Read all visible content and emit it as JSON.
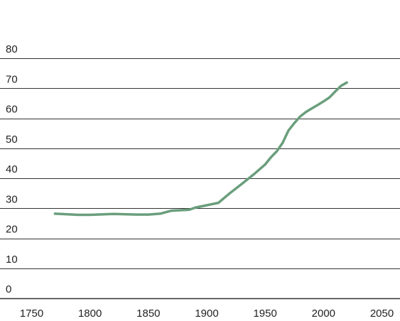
{
  "chart_data": {
    "type": "line",
    "title": "",
    "xlabel": "",
    "ylabel": "",
    "xlim": [
      1745,
      2055
    ],
    "ylim": [
      0,
      80
    ],
    "x_ticks": [
      1750,
      1800,
      1850,
      1900,
      1950,
      2000,
      2050
    ],
    "x_tick_labels": [
      "1750",
      "1800",
      "1850",
      "1900",
      "1950",
      "2000",
      "2050"
    ],
    "y_ticks": [
      0,
      10,
      20,
      30,
      40,
      50,
      60,
      70,
      80
    ],
    "y_tick_labels": [
      "0",
      "10",
      "20",
      "30",
      "40",
      "50",
      "60",
      "70",
      "80"
    ],
    "grid": "horizontal",
    "legend": "none",
    "colors": {
      "line": "#6a9e7c",
      "grid": "#333333"
    },
    "series": [
      {
        "x": [
          1770,
          1790,
          1800,
          1820,
          1840,
          1850,
          1860,
          1870,
          1880,
          1885,
          1890,
          1900,
          1910,
          1920,
          1930,
          1940,
          1950,
          1955,
          1960,
          1965,
          1970,
          1975,
          1980,
          1985,
          1990,
          1995,
          2000,
          2005,
          2010,
          2015,
          2020
        ],
        "y": [
          28.2,
          27.8,
          27.8,
          28.1,
          27.9,
          27.9,
          28.2,
          29.2,
          29.4,
          29.5,
          30.2,
          31.0,
          31.8,
          35.1,
          38.1,
          41.2,
          44.6,
          47.0,
          49.0,
          51.8,
          55.9,
          58.4,
          60.6,
          62.1,
          63.3,
          64.4,
          65.6,
          66.9,
          68.9,
          70.8,
          71.9
        ]
      }
    ]
  }
}
